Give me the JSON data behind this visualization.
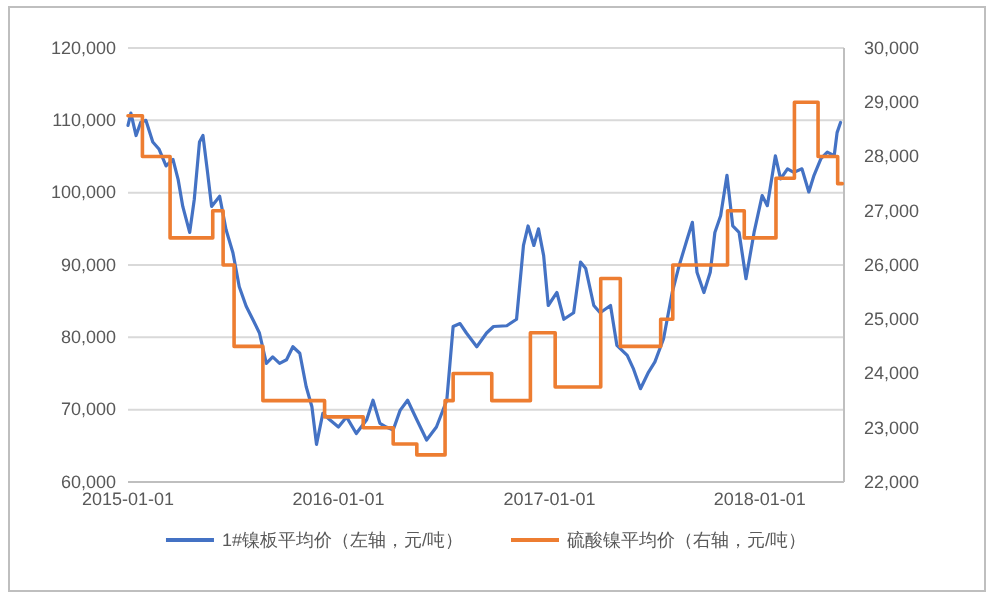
{
  "chart_data": {
    "type": "line",
    "legend": "bottom",
    "grid": "y",
    "x": [
      "2015-01-01",
      "2015-01-06",
      "2015-01-15",
      "2015-01-23",
      "2015-02-01",
      "2015-02-13",
      "2015-02-24",
      "2015-03-08",
      "2015-03-20",
      "2015-03-29",
      "2015-04-06",
      "2015-04-18",
      "2015-04-26",
      "2015-05-05",
      "2015-05-11",
      "2015-05-19",
      "2015-05-26",
      "2015-06-09",
      "2015-06-20",
      "2015-07-02",
      "2015-07-13",
      "2015-07-25",
      "2015-08-06",
      "2015-08-17",
      "2015-08-29",
      "2015-09-09",
      "2015-09-21",
      "2015-10-03",
      "2015-10-14",
      "2015-10-26",
      "2015-11-06",
      "2015-11-16",
      "2015-11-24",
      "2015-12-05",
      "2015-12-17",
      "2016-01-01",
      "2016-01-15",
      "2016-02-01",
      "2016-02-19",
      "2016-03-01",
      "2016-03-13",
      "2016-03-24",
      "2016-04-05",
      "2016-04-17",
      "2016-04-30",
      "2016-05-16",
      "2016-06-02",
      "2016-06-19",
      "2016-07-07",
      "2016-07-18",
      "2016-07-30",
      "2016-08-10",
      "2016-08-28",
      "2016-09-14",
      "2016-09-26",
      "2016-10-19",
      "2016-11-05",
      "2016-11-17",
      "2016-11-25",
      "2016-12-05",
      "2016-12-13",
      "2016-12-22",
      "2016-12-30",
      "2017-01-14",
      "2017-01-26",
      "2017-02-12",
      "2017-02-24",
      "2017-03-05",
      "2017-03-19",
      "2017-03-30",
      "2017-04-17",
      "2017-04-28",
      "2017-05-16",
      "2017-05-27",
      "2017-06-08",
      "2017-06-22",
      "2017-07-03",
      "2017-07-18",
      "2017-08-02",
      "2017-08-14",
      "2017-08-28",
      "2017-09-06",
      "2017-09-14",
      "2017-09-26",
      "2017-10-07",
      "2017-10-15",
      "2017-10-25",
      "2017-11-05",
      "2017-11-15",
      "2017-11-26",
      "2017-12-08",
      "2017-12-22",
      "2018-01-05",
      "2018-01-14",
      "2018-01-28",
      "2018-02-06",
      "2018-02-18",
      "2018-03-01",
      "2018-03-15",
      "2018-03-27",
      "2018-04-05",
      "2018-04-17",
      "2018-04-28",
      "2018-05-10",
      "2018-05-15",
      "2018-05-21"
    ],
    "xlim": [
      "2015-01-01",
      "2018-05-27"
    ],
    "xticks": [
      "2015-01-01",
      "2016-01-01",
      "2017-01-01",
      "2018-01-01"
    ],
    "ylim": [
      60000,
      120000
    ],
    "yticks": [
      {
        "value": 60000,
        "label": "60,000"
      },
      {
        "value": 70000,
        "label": "70,000"
      },
      {
        "value": 80000,
        "label": "80,000"
      },
      {
        "value": 90000,
        "label": "90,000"
      },
      {
        "value": 100000,
        "label": "100,000"
      },
      {
        "value": 110000,
        "label": "110,000"
      },
      {
        "value": 120000,
        "label": "120,000"
      }
    ],
    "y2lim": [
      22000,
      30000
    ],
    "y2ticks": [
      {
        "value": 22000,
        "label": "22,000"
      },
      {
        "value": 23000,
        "label": "23,000"
      },
      {
        "value": 24000,
        "label": "24,000"
      },
      {
        "value": 25000,
        "label": "25,000"
      },
      {
        "value": 26000,
        "label": "26,000"
      },
      {
        "value": 27000,
        "label": "27,000"
      },
      {
        "value": 28000,
        "label": "28,000"
      },
      {
        "value": 29000,
        "label": "29,000"
      },
      {
        "value": 30000,
        "label": "30,000"
      }
    ],
    "series": [
      {
        "name": "1#镍板平均价（左轴，元/吨）",
        "color": "#4472c4",
        "values": [
          109300,
          111000,
          107900,
          109700,
          110000,
          107000,
          106000,
          103700,
          104600,
          101800,
          98100,
          94500,
          99100,
          107000,
          107900,
          102800,
          98100,
          99500,
          94900,
          91700,
          87000,
          84300,
          82400,
          80600,
          76400,
          77300,
          76400,
          76900,
          78700,
          77800,
          73200,
          70400,
          65200,
          69500,
          68600,
          67600,
          69000,
          66700,
          68600,
          71300,
          68100,
          67600,
          67200,
          69900,
          71300,
          68600,
          65800,
          67600,
          71300,
          81500,
          81900,
          80600,
          78700,
          80600,
          81500,
          81600,
          82500,
          92700,
          95400,
          92700,
          95000,
          91300,
          84400,
          86200,
          82500,
          83400,
          90400,
          89500,
          84400,
          83400,
          84400,
          78900,
          77500,
          75600,
          72900,
          75200,
          76600,
          79800,
          86200,
          89900,
          93600,
          95900,
          89000,
          86200,
          89000,
          94500,
          96800,
          102400,
          95400,
          94500,
          88100,
          94500,
          99600,
          98200,
          105100,
          101900,
          103300,
          102800,
          103300,
          100100,
          102400,
          104700,
          105600,
          105100,
          108300,
          109700
        ]
      },
      {
        "name": "硫酸镍平均价（右轴，元/吨）",
        "color": "#ed7d31",
        "type": "step",
        "axis": "y2",
        "x": [
          "2015-01-01",
          "2015-01-26",
          "2015-03-15",
          "2015-05-28",
          "2015-06-15",
          "2015-07-04",
          "2015-08-23",
          "2015-12-08",
          "2016-02-13",
          "2016-04-05",
          "2016-05-16",
          "2016-07-04",
          "2016-07-18",
          "2016-09-23",
          "2016-11-29",
          "2017-01-11",
          "2017-03-31",
          "2017-05-04",
          "2017-07-13",
          "2017-08-03",
          "2017-11-06",
          "2017-12-05",
          "2018-01-29",
          "2018-03-02",
          "2018-04-12",
          "2018-05-16",
          "2018-05-24"
        ],
        "values": [
          28750,
          28000,
          26500,
          27000,
          26000,
          24500,
          23500,
          23200,
          23000,
          22700,
          22500,
          23500,
          24000,
          23500,
          24750,
          23750,
          25750,
          24500,
          25000,
          26000,
          27000,
          26500,
          27600,
          29000,
          28000,
          27500,
          27500
        ]
      }
    ]
  }
}
